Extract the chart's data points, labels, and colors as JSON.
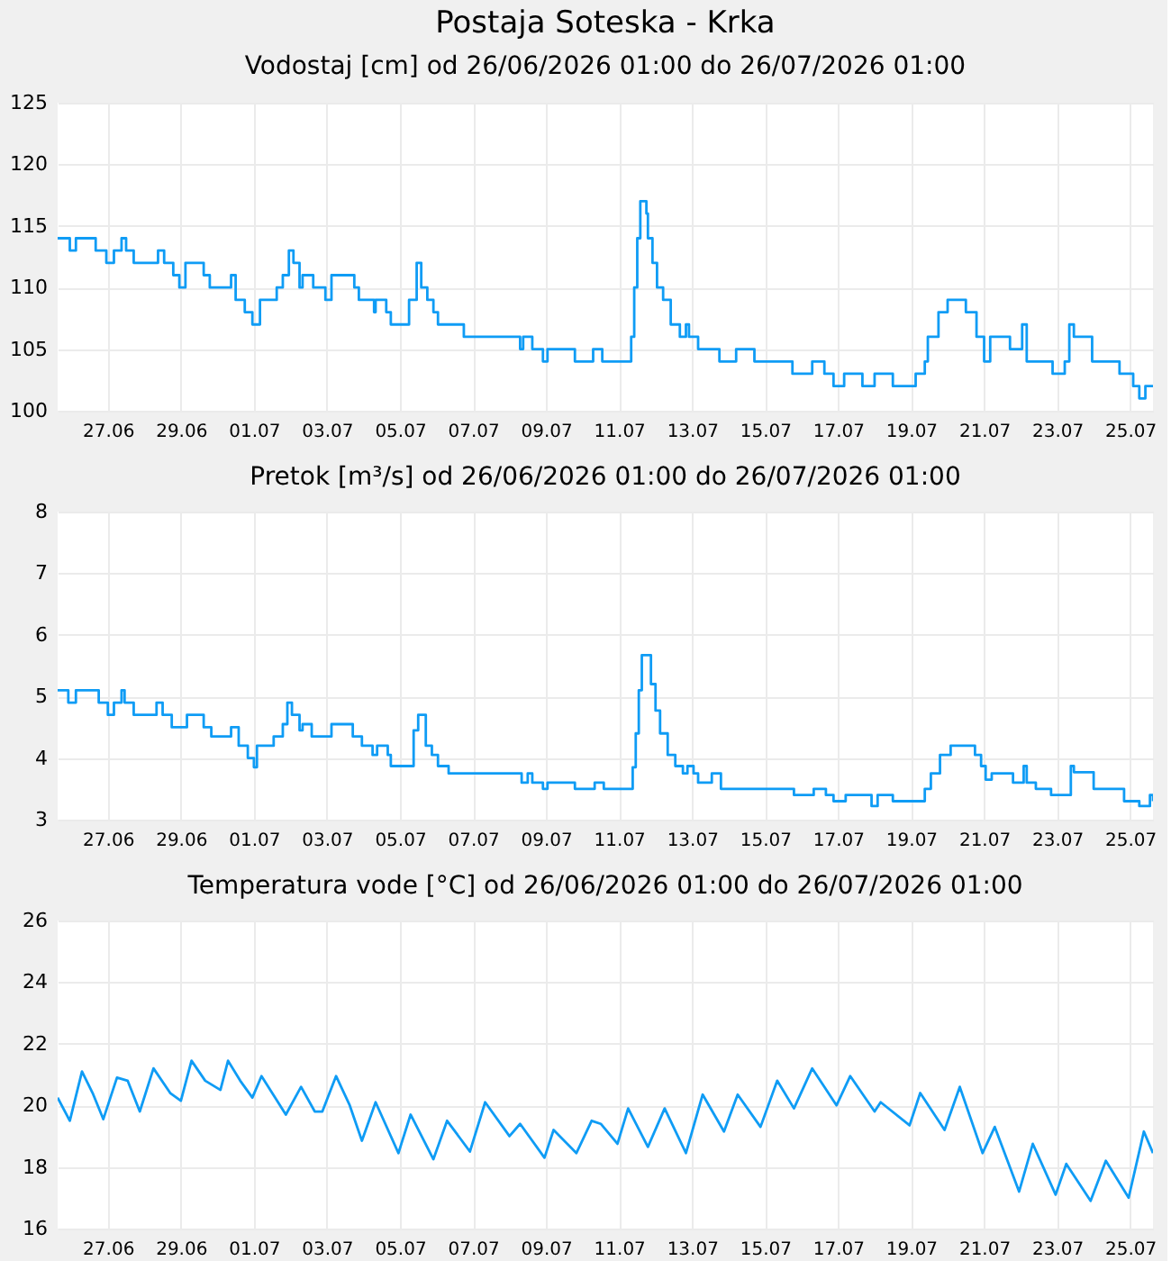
{
  "chart_data": [
    {
      "type": "step",
      "title": "Postaja Soteska - Krka",
      "subtitle": "Vodostaj [cm] od 26/06/2026 01:00 do 26/07/2026 01:00",
      "xlim": [
        "2026-06-26T01:00",
        "2026-07-26T01:00"
      ],
      "ylim": [
        100,
        125
      ],
      "yticks": [
        100,
        105,
        110,
        115,
        120,
        125
      ],
      "xticks": [
        {
          "value": "2026-06-27T10:00",
          "label": "27.06"
        },
        {
          "value": "2026-06-29T10:00",
          "label": "29.06"
        },
        {
          "value": "2026-07-01T10:00",
          "label": "01.07"
        },
        {
          "value": "2026-07-03T10:00",
          "label": "03.07"
        },
        {
          "value": "2026-07-05T10:00",
          "label": "05.07"
        },
        {
          "value": "2026-07-07T10:00",
          "label": "07.07"
        },
        {
          "value": "2026-07-09T10:00",
          "label": "09.07"
        },
        {
          "value": "2026-07-11T10:00",
          "label": "11.07"
        },
        {
          "value": "2026-07-13T10:00",
          "label": "13.07"
        },
        {
          "value": "2026-07-15T10:00",
          "label": "15.07"
        },
        {
          "value": "2026-07-17T10:00",
          "label": "17.07"
        },
        {
          "value": "2026-07-19T10:00",
          "label": "19.07"
        },
        {
          "value": "2026-07-21T10:00",
          "label": "21.07"
        },
        {
          "value": "2026-07-23T10:00",
          "label": "23.07"
        },
        {
          "value": "2026-07-25T10:00",
          "label": "25.07"
        }
      ],
      "grid": true,
      "series": [
        {
          "color": "#0f9cf5",
          "x": [
            "2026-06-26T01:00",
            "2026-06-26T09:00",
            "2026-06-26T13:00",
            "2026-06-27T02:00",
            "2026-06-27T09:00",
            "2026-06-27T14:00",
            "2026-06-27T19:00",
            "2026-06-27T22:00",
            "2026-06-28T03:00",
            "2026-06-28T12:00",
            "2026-06-28T19:00",
            "2026-06-28T23:00",
            "2026-06-29T05:00",
            "2026-06-29T09:00",
            "2026-06-29T13:00",
            "2026-06-29T21:00",
            "2026-06-30T01:00",
            "2026-06-30T05:00",
            "2026-06-30T17:00",
            "2026-06-30T19:00",
            "2026-06-30T22:00",
            "2026-07-01T04:00",
            "2026-07-01T09:00",
            "2026-07-01T14:00",
            "2026-07-01T23:00",
            "2026-07-02T01:00",
            "2026-07-02T05:00",
            "2026-07-02T09:00",
            "2026-07-02T12:00",
            "2026-07-02T16:00",
            "2026-07-02T18:00",
            "2026-07-02T22:00",
            "2026-07-03T01:00",
            "2026-07-03T07:00",
            "2026-07-03T09:00",
            "2026-07-03T13:00",
            "2026-07-04T01:00",
            "2026-07-04T04:00",
            "2026-07-04T07:00",
            "2026-07-04T15:00",
            "2026-07-04T17:00",
            "2026-07-04T18:00",
            "2026-07-04T22:00",
            "2026-07-05T01:00",
            "2026-07-05T04:00",
            "2026-07-05T11:00",
            "2026-07-05T16:00",
            "2026-07-05T21:00",
            "2026-07-06T00:00",
            "2026-07-06T04:00",
            "2026-07-06T08:00",
            "2026-07-06T11:00",
            "2026-07-07T04:00",
            "2026-07-08T14:00",
            "2026-07-08T17:00",
            "2026-07-08T19:00",
            "2026-07-09T01:00",
            "2026-07-09T08:00",
            "2026-07-09T11:00",
            "2026-07-10T05:00",
            "2026-07-10T17:00",
            "2026-07-10T23:00",
            "2026-07-11T16:00",
            "2026-07-11T18:00",
            "2026-07-11T20:00",
            "2026-07-11T22:00",
            "2026-07-12T00:00",
            "2026-07-12T04:00",
            "2026-07-12T05:00",
            "2026-07-12T08:00",
            "2026-07-12T11:00",
            "2026-07-12T15:00",
            "2026-07-12T20:00",
            "2026-07-13T02:00",
            "2026-07-13T06:00",
            "2026-07-13T08:00",
            "2026-07-13T14:00",
            "2026-07-14T04:00",
            "2026-07-14T15:00",
            "2026-07-15T03:00",
            "2026-07-16T04:00",
            "2026-07-16T17:00",
            "2026-07-17T01:00",
            "2026-07-17T07:00",
            "2026-07-17T14:00",
            "2026-07-18T02:00",
            "2026-07-18T10:00",
            "2026-07-18T22:00",
            "2026-07-19T13:00",
            "2026-07-19T19:00",
            "2026-07-19T21:00",
            "2026-07-20T04:00",
            "2026-07-20T10:00",
            "2026-07-20T18:00",
            "2026-07-20T22:00",
            "2026-07-21T05:00",
            "2026-07-21T10:00",
            "2026-07-21T14:00",
            "2026-07-22T01:00",
            "2026-07-22T03:00",
            "2026-07-22T11:00",
            "2026-07-22T14:00",
            "2026-07-23T05:00",
            "2026-07-23T07:00",
            "2026-07-23T15:00",
            "2026-07-23T18:00",
            "2026-07-23T21:00",
            "2026-07-24T07:00",
            "2026-07-24T09:00",
            "2026-07-25T00:00",
            "2026-07-25T03:00",
            "2026-07-25T12:00",
            "2026-07-25T16:00",
            "2026-07-25T20:00",
            "2026-07-26T01:00"
          ],
          "values": [
            114,
            113,
            114,
            113,
            112,
            113,
            114,
            113,
            112,
            112,
            113,
            112,
            111,
            110,
            112,
            112,
            111,
            110,
            110,
            111,
            109,
            108,
            107,
            109,
            109,
            110,
            111,
            113,
            112,
            110,
            111,
            111,
            110,
            110,
            109,
            111,
            111,
            110,
            109,
            109,
            108,
            109,
            109,
            108,
            107,
            107,
            109,
            112,
            110,
            109,
            108,
            107,
            106,
            106,
            105,
            106,
            105,
            104,
            105,
            104,
            105,
            104,
            104,
            106,
            110,
            114,
            117,
            116,
            114,
            112,
            110,
            109,
            107,
            106,
            107,
            106,
            105,
            104,
            105,
            104,
            103,
            104,
            103,
            102,
            103,
            102,
            103,
            102,
            103,
            104,
            106,
            108,
            109,
            109,
            108,
            106,
            104,
            106,
            106,
            105,
            107,
            104,
            104,
            103,
            104,
            107,
            106,
            106,
            104,
            104,
            103,
            102,
            101,
            102,
            102
          ]
        }
      ]
    },
    {
      "type": "step",
      "title": "Pretok [m³/s] od 26/06/2026 01:00 do 26/07/2026 01:00",
      "xlim": [
        "2026-06-26T01:00",
        "2026-07-26T01:00"
      ],
      "ylim": [
        3,
        8
      ],
      "yticks": [
        3,
        4,
        5,
        6,
        7,
        8
      ],
      "xticks": [
        {
          "value": "2026-06-27T10:00",
          "label": "27.06"
        },
        {
          "value": "2026-06-29T10:00",
          "label": "29.06"
        },
        {
          "value": "2026-07-01T10:00",
          "label": "01.07"
        },
        {
          "value": "2026-07-03T10:00",
          "label": "03.07"
        },
        {
          "value": "2026-07-05T10:00",
          "label": "05.07"
        },
        {
          "value": "2026-07-07T10:00",
          "label": "07.07"
        },
        {
          "value": "2026-07-09T10:00",
          "label": "09.07"
        },
        {
          "value": "2026-07-11T10:00",
          "label": "11.07"
        },
        {
          "value": "2026-07-13T10:00",
          "label": "13.07"
        },
        {
          "value": "2026-07-15T10:00",
          "label": "15.07"
        },
        {
          "value": "2026-07-17T10:00",
          "label": "17.07"
        },
        {
          "value": "2026-07-19T10:00",
          "label": "19.07"
        },
        {
          "value": "2026-07-21T10:00",
          "label": "21.07"
        },
        {
          "value": "2026-07-23T10:00",
          "label": "23.07"
        },
        {
          "value": "2026-07-25T10:00",
          "label": "25.07"
        }
      ],
      "grid": true,
      "series": [
        {
          "color": "#0f9cf5",
          "x": [
            "2026-06-26T01:00",
            "2026-06-26T08:00",
            "2026-06-26T13:00",
            "2026-06-27T03:00",
            "2026-06-27T04:00",
            "2026-06-27T10:00",
            "2026-06-27T14:00",
            "2026-06-27T19:00",
            "2026-06-27T21:00",
            "2026-06-28T03:00",
            "2026-06-28T11:00",
            "2026-06-28T18:00",
            "2026-06-28T22:00",
            "2026-06-29T04:00",
            "2026-06-29T14:00",
            "2026-06-29T21:00",
            "2026-06-30T01:00",
            "2026-06-30T06:00",
            "2026-06-30T16:00",
            "2026-06-30T19:00",
            "2026-07-01T00:00",
            "2026-07-01T06:00",
            "2026-07-01T10:00",
            "2026-07-01T12:00",
            "2026-07-01T23:00",
            "2026-07-02T05:00",
            "2026-07-02T08:00",
            "2026-07-02T11:00",
            "2026-07-02T16:00",
            "2026-07-02T18:00",
            "2026-07-03T00:00",
            "2026-07-03T10:00",
            "2026-07-03T13:00",
            "2026-07-04T01:00",
            "2026-07-04T03:00",
            "2026-07-04T09:00",
            "2026-07-04T16:00",
            "2026-07-04T19:00",
            "2026-07-05T02:00",
            "2026-07-05T04:00",
            "2026-07-05T11:00",
            "2026-07-05T19:00",
            "2026-07-05T22:00",
            "2026-07-06T03:00",
            "2026-07-06T07:00",
            "2026-07-06T11:00",
            "2026-07-06T18:00",
            "2026-07-08T14:00",
            "2026-07-08T18:00",
            "2026-07-08T22:00",
            "2026-07-09T01:00",
            "2026-07-09T08:00",
            "2026-07-09T11:00",
            "2026-07-10T05:00",
            "2026-07-10T18:00",
            "2026-07-11T00:00",
            "2026-07-11T17:00",
            "2026-07-11T19:00",
            "2026-07-11T21:00",
            "2026-07-11T23:00",
            "2026-07-12T01:00",
            "2026-07-12T07:00",
            "2026-07-12T10:00",
            "2026-07-12T13:00",
            "2026-07-12T18:00",
            "2026-07-12T23:00",
            "2026-07-13T04:00",
            "2026-07-13T07:00",
            "2026-07-13T11:00",
            "2026-07-13T14:00",
            "2026-07-13T23:00",
            "2026-07-14T05:00",
            "2026-07-16T05:00",
            "2026-07-16T18:00",
            "2026-07-17T02:00",
            "2026-07-17T07:00",
            "2026-07-17T15:00",
            "2026-07-18T08:00",
            "2026-07-18T12:00",
            "2026-07-18T22:00",
            "2026-07-19T13:00",
            "2026-07-19T19:00",
            "2026-07-19T23:00",
            "2026-07-20T05:00",
            "2026-07-20T12:00",
            "2026-07-21T04:00",
            "2026-07-21T08:00",
            "2026-07-21T11:00",
            "2026-07-21T15:00",
            "2026-07-22T05:00",
            "2026-07-22T12:00",
            "2026-07-22T14:00",
            "2026-07-22T20:00",
            "2026-07-23T06:00",
            "2026-07-23T19:00",
            "2026-07-23T21:00",
            "2026-07-24T10:00",
            "2026-07-25T06:00",
            "2026-07-25T16:00",
            "2026-07-25T23:00",
            "2026-07-26T01:00"
          ],
          "values": [
            5.1,
            4.9,
            5.1,
            5.1,
            4.9,
            4.7,
            4.9,
            5.1,
            4.9,
            4.7,
            4.7,
            4.9,
            4.7,
            4.5,
            4.7,
            4.7,
            4.5,
            4.35,
            4.35,
            4.5,
            4.2,
            4.0,
            3.85,
            4.2,
            4.35,
            4.55,
            4.9,
            4.7,
            4.45,
            4.55,
            4.35,
            4.35,
            4.55,
            4.55,
            4.35,
            4.2,
            4.05,
            4.2,
            4.05,
            3.87,
            3.87,
            4.45,
            4.7,
            4.2,
            4.05,
            3.87,
            3.75,
            3.75,
            3.6,
            3.75,
            3.6,
            3.5,
            3.6,
            3.5,
            3.6,
            3.5,
            3.5,
            3.85,
            4.4,
            5.1,
            5.67,
            5.2,
            4.77,
            4.4,
            4.05,
            3.87,
            3.75,
            3.87,
            3.75,
            3.6,
            3.75,
            3.5,
            3.4,
            3.5,
            3.4,
            3.3,
            3.4,
            3.22,
            3.4,
            3.3,
            3.3,
            3.5,
            3.75,
            4.05,
            4.2,
            4.05,
            3.87,
            3.65,
            3.75,
            3.6,
            3.87,
            3.6,
            3.5,
            3.4,
            3.87,
            3.77,
            3.5,
            3.3,
            3.22,
            3.4,
            3.3
          ]
        }
      ]
    },
    {
      "type": "line",
      "title": "Temperatura vode [°C] od 26/06/2026 01:00 do 26/07/2026 01:00",
      "xlim": [
        "2026-06-26T01:00",
        "2026-07-26T01:00"
      ],
      "ylim": [
        16,
        26
      ],
      "yticks": [
        16,
        18,
        20,
        22,
        24,
        26
      ],
      "xticks": [
        {
          "value": "2026-06-27T10:00",
          "label": "27.06"
        },
        {
          "value": "2026-06-29T10:00",
          "label": "29.06"
        },
        {
          "value": "2026-07-01T10:00",
          "label": "01.07"
        },
        {
          "value": "2026-07-03T10:00",
          "label": "03.07"
        },
        {
          "value": "2026-07-05T10:00",
          "label": "05.07"
        },
        {
          "value": "2026-07-07T10:00",
          "label": "07.07"
        },
        {
          "value": "2026-07-09T10:00",
          "label": "09.07"
        },
        {
          "value": "2026-07-11T10:00",
          "label": "11.07"
        },
        {
          "value": "2026-07-13T10:00",
          "label": "13.07"
        },
        {
          "value": "2026-07-15T10:00",
          "label": "15.07"
        },
        {
          "value": "2026-07-17T10:00",
          "label": "17.07"
        },
        {
          "value": "2026-07-19T10:00",
          "label": "19.07"
        },
        {
          "value": "2026-07-21T10:00",
          "label": "21.07"
        },
        {
          "value": "2026-07-23T10:00",
          "label": "23.07"
        },
        {
          "value": "2026-07-25T10:00",
          "label": "25.07"
        }
      ],
      "grid": true,
      "series": [
        {
          "color": "#0f9cf5",
          "x": [
            "2026-06-26T01:00",
            "2026-06-26T09:00",
            "2026-06-26T17:00",
            "2026-06-27T00:00",
            "2026-06-27T07:00",
            "2026-06-27T16:00",
            "2026-06-27T23:00",
            "2026-06-28T07:00",
            "2026-06-28T16:00",
            "2026-06-29T03:00",
            "2026-06-29T10:00",
            "2026-06-29T17:00",
            "2026-06-30T02:00",
            "2026-06-30T12:00",
            "2026-06-30T17:00",
            "2026-07-01T01:00",
            "2026-07-01T09:00",
            "2026-07-01T15:00",
            "2026-07-02T00:00",
            "2026-07-02T07:00",
            "2026-07-02T17:00",
            "2026-07-03T02:00",
            "2026-07-03T07:00",
            "2026-07-03T16:00",
            "2026-07-04T01:00",
            "2026-07-04T09:00",
            "2026-07-04T18:00",
            "2026-07-05T09:00",
            "2026-07-05T17:00",
            "2026-07-06T08:00",
            "2026-07-06T17:00",
            "2026-07-07T08:00",
            "2026-07-07T18:00",
            "2026-07-08T10:00",
            "2026-07-08T17:00",
            "2026-07-09T09:00",
            "2026-07-09T15:00",
            "2026-07-10T06:00",
            "2026-07-10T16:00",
            "2026-07-10T22:00",
            "2026-07-11T09:00",
            "2026-07-11T16:00",
            "2026-07-12T05:00",
            "2026-07-12T16:00",
            "2026-07-13T06:00",
            "2026-07-13T17:00",
            "2026-07-14T07:00",
            "2026-07-14T16:00",
            "2026-07-15T07:00",
            "2026-07-15T18:00",
            "2026-07-16T05:00",
            "2026-07-16T17:00",
            "2026-07-17T09:00",
            "2026-07-17T18:00",
            "2026-07-18T10:00",
            "2026-07-18T14:00",
            "2026-07-19T09:00",
            "2026-07-19T16:00",
            "2026-07-20T08:00",
            "2026-07-20T18:00",
            "2026-07-21T09:00",
            "2026-07-21T17:00",
            "2026-07-22T09:00",
            "2026-07-22T18:00",
            "2026-07-23T09:00",
            "2026-07-23T16:00",
            "2026-07-24T08:00",
            "2026-07-24T18:00",
            "2026-07-25T09:00",
            "2026-07-25T19:00",
            "2026-07-26T01:00"
          ],
          "values": [
            20.25,
            19.5,
            21.1,
            20.4,
            19.55,
            20.9,
            20.8,
            19.8,
            21.2,
            20.4,
            20.15,
            21.45,
            20.8,
            20.5,
            21.45,
            20.8,
            20.25,
            20.95,
            20.25,
            19.7,
            20.6,
            19.8,
            19.8,
            20.95,
            20.0,
            18.85,
            20.1,
            18.45,
            19.7,
            18.25,
            19.5,
            18.5,
            20.1,
            19.0,
            19.4,
            18.3,
            19.2,
            18.45,
            19.5,
            19.4,
            18.75,
            19.9,
            18.65,
            19.9,
            18.45,
            20.35,
            19.15,
            20.35,
            19.3,
            20.8,
            19.9,
            21.2,
            20.0,
            20.95,
            19.8,
            20.1,
            19.35,
            20.4,
            19.2,
            20.6,
            18.45,
            19.3,
            17.2,
            18.75,
            17.1,
            18.1,
            16.9,
            18.2,
            17.0,
            19.15,
            18.45
          ]
        }
      ]
    }
  ]
}
